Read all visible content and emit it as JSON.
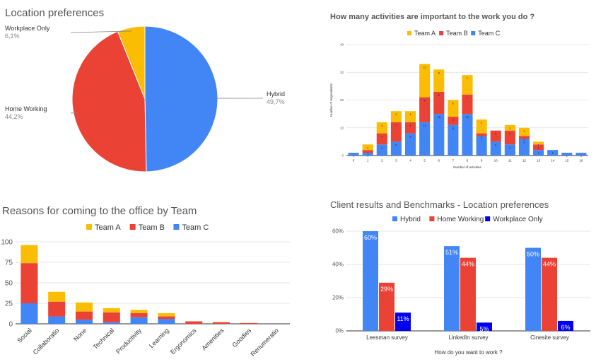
{
  "colors": {
    "team_a": "#FBBC04",
    "team_b": "#EA4335",
    "team_c": "#4285F4",
    "workplace_only": "#0000EE"
  },
  "chart_data": [
    {
      "type": "pie",
      "title": "Location preferences",
      "slices": [
        {
          "label": "Hybrid",
          "value": 49.7,
          "value_label": "49,7%",
          "color": "#4285F4"
        },
        {
          "label": "Home Working",
          "value": 44.2,
          "value_label": "44,2%",
          "color": "#EA4335"
        },
        {
          "label": "Workplace Only",
          "value": 6.1,
          "value_label": "6,1%",
          "color": "#FBBC04"
        }
      ]
    },
    {
      "type": "bar",
      "stacked": true,
      "title": "How many activities are important to the work you do ?",
      "xlabel": "Number of activities",
      "ylabel": "Number of respondents",
      "ylim": [
        0,
        40
      ],
      "yticks": [
        0,
        10,
        20,
        30,
        40
      ],
      "legend_position": "top",
      "categories": [
        "0",
        "1",
        "2",
        "3",
        "4",
        "5",
        "6",
        "7",
        "8",
        "9",
        "10",
        "11",
        "12",
        "13",
        "14",
        "15",
        "16"
      ],
      "series": [
        {
          "name": "Team C",
          "color": "#4285F4",
          "values": [
            1,
            1,
            4,
            5,
            8,
            12,
            15,
            11,
            15,
            7,
            5,
            4,
            6,
            2,
            2,
            1,
            1
          ]
        },
        {
          "name": "Team B",
          "color": "#EA4335",
          "values": [
            0,
            1,
            4,
            7,
            4,
            9,
            8,
            3,
            7,
            1,
            4,
            5,
            1,
            2,
            0,
            0,
            0
          ]
        },
        {
          "name": "Team A",
          "color": "#FBBC04",
          "values": [
            0,
            2,
            4,
            4,
            4,
            12,
            8,
            6,
            7,
            5,
            0,
            2,
            3,
            1,
            0,
            0,
            0
          ]
        }
      ]
    },
    {
      "type": "bar",
      "stacked": true,
      "title": "Reasons for coming to the office by Team",
      "ylim": [
        0,
        100
      ],
      "yticks": [
        0,
        25,
        50,
        75,
        100
      ],
      "legend_position": "top",
      "categories": [
        "Social",
        "Collaboratio",
        "None",
        "Technical",
        "Productivity",
        "Learning",
        "Ergonomics",
        "Amenities",
        "Goodies",
        "Renumeratio"
      ],
      "series": [
        {
          "name": "Team C",
          "color": "#4285F4",
          "values": [
            25,
            9,
            5,
            2,
            8,
            6,
            0,
            0,
            0,
            0
          ]
        },
        {
          "name": "Team B",
          "color": "#EA4335",
          "values": [
            49,
            18,
            10,
            12,
            5,
            3,
            3,
            2,
            1,
            0
          ]
        },
        {
          "name": "Team A",
          "color": "#FBBC04",
          "values": [
            22,
            12,
            11,
            5,
            4,
            4,
            0,
            0,
            0,
            0
          ]
        }
      ]
    },
    {
      "type": "bar",
      "title": "Client results and Benchmarks - Location preferences",
      "xlabel": "How do you want to work ?",
      "ylim": [
        0,
        60
      ],
      "yticks": [
        0,
        20,
        40,
        60
      ],
      "ytick_labels": [
        "0%",
        "20%",
        "40%",
        "60%"
      ],
      "legend_position": "top",
      "categories": [
        "Leesman survey",
        "LinkedIn survey",
        "Cinesite survey"
      ],
      "series": [
        {
          "name": "Hybrid",
          "color": "#4285F4",
          "values": [
            60,
            51,
            50
          ],
          "labels": [
            "60%",
            "51%",
            "50%"
          ]
        },
        {
          "name": "Home Working",
          "color": "#EA4335",
          "values": [
            29,
            44,
            44
          ],
          "labels": [
            "29%",
            "44%",
            "44%"
          ]
        },
        {
          "name": "Workplace Only",
          "color": "#0000EE",
          "values": [
            11,
            5,
            6
          ],
          "labels": [
            "11%",
            "5%",
            "6%"
          ]
        }
      ]
    }
  ]
}
